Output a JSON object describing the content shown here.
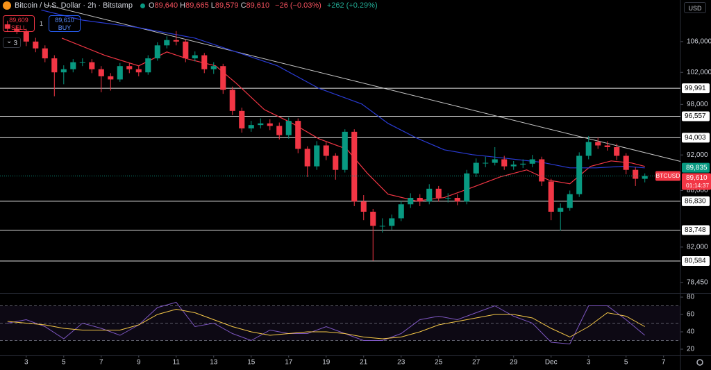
{
  "header": {
    "title": "Bitcoin / U.S. Dollar · 2h · Bitstamp",
    "ohlc": [
      {
        "label": "O",
        "value": "89,640"
      },
      {
        "label": "H",
        "value": "89,665"
      },
      {
        "label": "L",
        "value": "89,579"
      },
      {
        "label": "C",
        "value": "89,610"
      }
    ],
    "change": "−26 (−0.03%)",
    "change_24h": "+262 (+0.29%)"
  },
  "trade": {
    "sell_price": "89,609",
    "sell": "SELL",
    "quantity": "1",
    "buy_price": "89,610",
    "buy": "BUY"
  },
  "indicators_count": "3",
  "currency": "USD",
  "chart_data": [
    {
      "type": "candlestick",
      "log_scale": true,
      "up_color": "#089981",
      "down_color": "#f23645",
      "x": [
        2,
        2.5,
        3,
        3.5,
        4,
        4.5,
        5,
        5.5,
        6,
        6.5,
        7,
        7.5,
        8,
        8.5,
        9,
        9.5,
        10,
        10.5,
        11,
        11.5,
        12,
        12.5,
        13,
        13.5,
        14,
        14.5,
        15,
        15.5,
        16,
        16.5,
        17,
        17.5,
        18,
        18.5,
        19,
        19.5,
        20,
        20.5,
        21,
        21.5,
        22,
        22.5,
        23,
        23.5,
        24,
        24.5,
        25,
        25.5,
        26,
        26.5,
        27,
        27.5,
        28,
        28.5,
        29,
        29.5,
        30,
        30.5,
        31,
        31.5,
        32,
        32.5,
        33,
        33.5,
        34,
        34.5,
        35,
        35.5,
        36
      ],
      "open": [
        108300,
        107700,
        107400,
        106000,
        105100,
        103800,
        102000,
        102400,
        103300,
        103300,
        102400,
        101500,
        101100,
        102800,
        102400,
        102000,
        103800,
        105500,
        106200,
        106000,
        103800,
        104200,
        102400,
        102800,
        99800,
        97200,
        95100,
        95500,
        95700,
        95400,
        94300,
        96000,
        92700,
        90700,
        93100,
        91900,
        90300,
        94700,
        86800,
        85700,
        84200,
        84200,
        85000,
        86500,
        87200,
        86800,
        88200,
        87200,
        87200,
        86800,
        89900,
        91100,
        91100,
        91500,
        90700,
        90900,
        91000,
        91500,
        89000,
        85700,
        86100,
        87600,
        91900,
        93500,
        93100,
        92900,
        91900,
        90300,
        89300
      ],
      "high": [
        108800,
        108100,
        107700,
        106500,
        105500,
        104200,
        102900,
        103700,
        103800,
        103700,
        102800,
        101900,
        103200,
        103200,
        102800,
        104200,
        105900,
        106700,
        107400,
        106300,
        104700,
        104500,
        103300,
        103100,
        100200,
        97600,
        96000,
        96300,
        96200,
        95800,
        96400,
        96300,
        93000,
        93600,
        93500,
        92200,
        95000,
        95000,
        87500,
        86000,
        85000,
        85400,
        86900,
        87700,
        87600,
        88700,
        88500,
        87700,
        87600,
        90300,
        91600,
        91800,
        92900,
        91900,
        91300,
        91500,
        92000,
        91800,
        89300,
        86600,
        88000,
        92300,
        94200,
        94000,
        93600,
        93300,
        92200,
        90600,
        89900
      ],
      "low": [
        107300,
        107000,
        105400,
        104600,
        103300,
        99000,
        100500,
        102000,
        102800,
        101900,
        99500,
        99700,
        100800,
        101900,
        101500,
        101700,
        103500,
        105100,
        105500,
        103300,
        103400,
        101900,
        101800,
        99300,
        96700,
        94600,
        94700,
        95100,
        94900,
        93800,
        93900,
        92200,
        89500,
        90300,
        91400,
        89200,
        90000,
        86300,
        84800,
        80600,
        83500,
        83800,
        84700,
        86100,
        86300,
        86500,
        86800,
        86700,
        86400,
        86500,
        89500,
        90600,
        90800,
        90300,
        90300,
        90500,
        90600,
        88500,
        84800,
        83700,
        85800,
        87300,
        91500,
        92700,
        92500,
        91400,
        89800,
        88500,
        88900
      ],
      "close": [
        107700,
        107400,
        106000,
        105100,
        103800,
        102000,
        102400,
        103300,
        103300,
        102400,
        101500,
        101100,
        102800,
        102400,
        102000,
        103800,
        105500,
        106200,
        106000,
        103800,
        104200,
        102400,
        102800,
        99800,
        97200,
        95100,
        95500,
        95700,
        95400,
        94300,
        96000,
        92700,
        90700,
        93100,
        91900,
        90300,
        94700,
        86800,
        85700,
        84200,
        84200,
        85000,
        86500,
        87200,
        86800,
        88200,
        87200,
        87200,
        86800,
        89900,
        91100,
        91100,
        91500,
        90700,
        90900,
        91000,
        91500,
        89000,
        85700,
        86100,
        87600,
        91900,
        93500,
        93100,
        92900,
        91900,
        90300,
        89300,
        89610
      ],
      "moving_averages": [
        {
          "color": "#f23645",
          "x": [
            4.9,
            7.2,
            9,
            10.5,
            11.6,
            13.1,
            14.2,
            15.7,
            17.2,
            18.6,
            20.1,
            21.2,
            22.3,
            23.8,
            25.3,
            26.8,
            28.3,
            29.7,
            30.9,
            32,
            33.1,
            34.2,
            35.3,
            36
          ],
          "values": [
            106460,
            104180,
            102840,
            104640,
            103730,
            102840,
            100620,
            97360,
            95700,
            93890,
            92670,
            89910,
            87600,
            86860,
            87230,
            88350,
            89520,
            90300,
            89130,
            88750,
            90690,
            91320,
            91080,
            90690
          ]
        },
        {
          "color": "#2a3cd6",
          "x": [
            3.8,
            6,
            9,
            12,
            14.2,
            16.4,
            18.6,
            20.9,
            22.3,
            23.8,
            25.3,
            26.8,
            28.3,
            30.5,
            32,
            33.4,
            34.9,
            36
          ],
          "values": [
            110260,
            108880,
            107860,
            106460,
            104640,
            102840,
            100000,
            98050,
            95700,
            93990,
            92590,
            92030,
            91680,
            91160,
            90530,
            90530,
            90710,
            90530
          ]
        }
      ],
      "trendline": {
        "color": "#c8c8c8",
        "x": [
          4,
          37.9
        ],
        "values": [
          111000,
          91260
        ]
      },
      "levels": [
        {
          "value": 99991,
          "label": "99,991"
        },
        {
          "value": 96557,
          "label": "96,557"
        },
        {
          "value": 94003,
          "label": "94,003"
        },
        {
          "value": 86830,
          "label": "86,830"
        },
        {
          "value": 83748,
          "label": "83,748"
        },
        {
          "value": 80584,
          "label": "80,584"
        }
      ],
      "previous_price": {
        "value": 89835,
        "label": "89,835"
      },
      "last_price": {
        "value": 89610,
        "label": "89,610",
        "countdown": "01:14:37",
        "symbol": "BTCUSD"
      },
      "ylim": [
        77430,
        111650
      ],
      "yticks": [
        {
          "value": 106000,
          "label": "106,000"
        },
        {
          "value": 102000,
          "label": "102,000"
        },
        {
          "value": 98000,
          "label": "98,000"
        },
        {
          "value": 92000,
          "label": "92,000"
        },
        {
          "value": 88000,
          "label": "88,000"
        },
        {
          "value": 82000,
          "label": "82,000"
        },
        {
          "value": 78450,
          "label": "78,450"
        }
      ],
      "xlim": [
        1.6,
        37.9
      ],
      "xticks": [
        3,
        5,
        7,
        9,
        11,
        13,
        15,
        17,
        19,
        21,
        23,
        25,
        27,
        29,
        {
          "value": 31,
          "label": "Dec"
        },
        {
          "value": 33,
          "label": "3"
        },
        {
          "value": 35,
          "label": "5"
        },
        {
          "value": 37,
          "label": "7"
        }
      ]
    },
    {
      "type": "line",
      "x": [
        2,
        3,
        4,
        5,
        6,
        7,
        8,
        9,
        10,
        11,
        12,
        13,
        14,
        15,
        16,
        17,
        18,
        19,
        20,
        21,
        22,
        23,
        24,
        25,
        26,
        27,
        28,
        29,
        30,
        31,
        32,
        33,
        34,
        35,
        36
      ],
      "series": [
        {
          "color": "#7e57c2",
          "values": [
            50,
            54,
            46,
            32,
            50,
            44,
            36,
            48,
            68,
            74,
            46,
            50,
            38,
            30,
            42,
            38,
            38,
            46,
            38,
            30,
            30,
            38,
            54,
            58,
            54,
            62,
            70,
            58,
            50,
            28,
            26,
            70,
            70,
            54,
            36
          ]
        },
        {
          "color": "#f7c948",
          "values": [
            52,
            50,
            48,
            44,
            42,
            42,
            42,
            48,
            60,
            66,
            62,
            54,
            46,
            40,
            36,
            38,
            40,
            40,
            38,
            34,
            32,
            34,
            40,
            48,
            52,
            56,
            60,
            60,
            56,
            44,
            34,
            46,
            62,
            58,
            46
          ]
        }
      ],
      "levels": [
        70,
        50,
        30
      ],
      "band_color": "#7e57c2",
      "xlim": [
        1.6,
        37.9
      ],
      "ylim": [
        12.8,
        84.8
      ],
      "yticks": [
        80,
        60,
        40,
        20
      ]
    }
  ]
}
